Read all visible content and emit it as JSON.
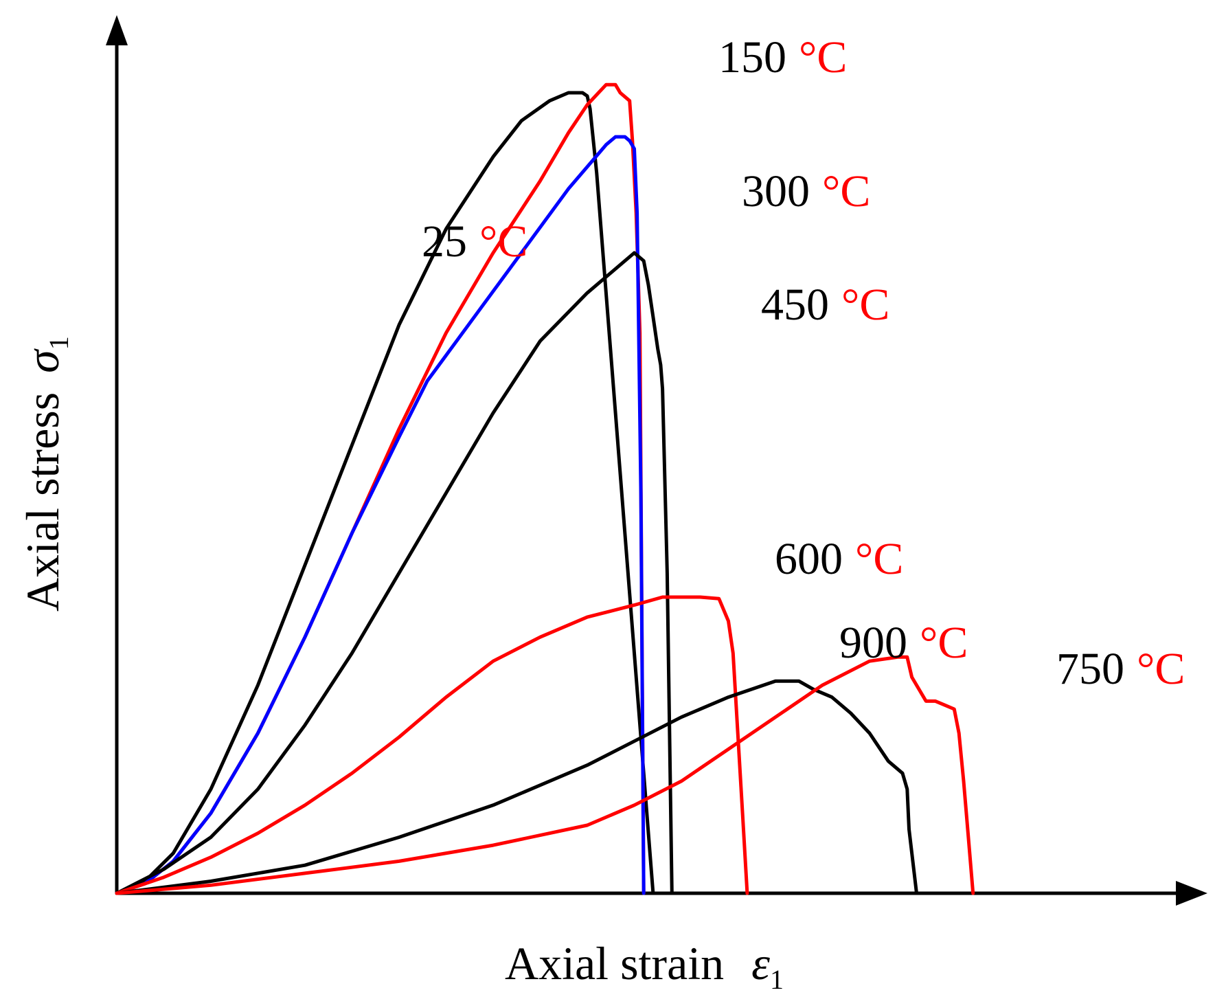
{
  "chart_data": {
    "type": "line",
    "title": "",
    "xlabel": "Axial strain",
    "xlabel_symbol": "ε",
    "xlabel_subscript": "1",
    "ylabel": "Axial stress",
    "ylabel_symbol": "σ",
    "ylabel_subscript": "1",
    "grid": false,
    "legend": "inline labels",
    "xlim": [
      0,
      1.0
    ],
    "ylim": [
      0,
      1.0
    ],
    "unit_symbol": "°C",
    "colors": {
      "black": "#000000",
      "red": "#ff0000",
      "blue": "#0000ff"
    },
    "series": [
      {
        "name": "25",
        "color": "#000000",
        "x": [
          0,
          0.03,
          0.06,
          0.1,
          0.15,
          0.2,
          0.25,
          0.3,
          0.35,
          0.4,
          0.43,
          0.46,
          0.48,
          0.495,
          0.5,
          0.503,
          0.51,
          0.57
        ],
        "y": [
          0,
          0.015,
          0.05,
          0.13,
          0.26,
          0.41,
          0.56,
          0.71,
          0.83,
          0.92,
          0.965,
          0.99,
          1.0,
          1.0,
          0.996,
          0.98,
          0.9,
          0
        ]
      },
      {
        "name": "150",
        "color": "#ff0000",
        "x": [
          0,
          0.03,
          0.06,
          0.1,
          0.15,
          0.2,
          0.25,
          0.3,
          0.35,
          0.4,
          0.45,
          0.48,
          0.5,
          0.52,
          0.53,
          0.535,
          0.54,
          0.545,
          0.548,
          0.552,
          0.556,
          0.56
        ],
        "y": [
          0,
          0.012,
          0.04,
          0.1,
          0.2,
          0.32,
          0.45,
          0.58,
          0.7,
          0.8,
          0.89,
          0.95,
          0.985,
          1.01,
          1.01,
          1.0,
          0.995,
          0.99,
          0.94,
          0.85,
          0.7,
          0
        ]
      },
      {
        "name": "300",
        "color": "#0000ff",
        "x": [
          0,
          0.03,
          0.06,
          0.1,
          0.15,
          0.2,
          0.25,
          0.3,
          0.33,
          0.38,
          0.43,
          0.48,
          0.52,
          0.53,
          0.54,
          0.545,
          0.55,
          0.553,
          0.557,
          0.56
        ],
        "y": [
          0,
          0.012,
          0.04,
          0.1,
          0.2,
          0.32,
          0.45,
          0.57,
          0.64,
          0.72,
          0.8,
          0.88,
          0.935,
          0.945,
          0.945,
          0.94,
          0.93,
          0.85,
          0.5,
          0
        ]
      },
      {
        "name": "450",
        "color": "#000000",
        "x": [
          0,
          0.05,
          0.1,
          0.15,
          0.2,
          0.25,
          0.3,
          0.35,
          0.4,
          0.45,
          0.5,
          0.55,
          0.56,
          0.565,
          0.57,
          0.575,
          0.578,
          0.58,
          0.585,
          0.59
        ],
        "y": [
          0,
          0.03,
          0.07,
          0.13,
          0.21,
          0.3,
          0.4,
          0.5,
          0.6,
          0.69,
          0.75,
          0.8,
          0.79,
          0.76,
          0.72,
          0.68,
          0.66,
          0.63,
          0.4,
          0
        ]
      },
      {
        "name": "600",
        "color": "#ff0000",
        "x": [
          0,
          0.05,
          0.1,
          0.15,
          0.2,
          0.25,
          0.3,
          0.35,
          0.4,
          0.45,
          0.5,
          0.55,
          0.58,
          0.6,
          0.62,
          0.64,
          0.65,
          0.655,
          0.66,
          0.665,
          0.67
        ],
        "y": [
          0,
          0.02,
          0.045,
          0.075,
          0.11,
          0.15,
          0.195,
          0.245,
          0.29,
          0.32,
          0.345,
          0.36,
          0.37,
          0.37,
          0.37,
          0.368,
          0.34,
          0.3,
          0.2,
          0.1,
          0
        ]
      },
      {
        "name": "900",
        "color": "#000000",
        "x": [
          0,
          0.1,
          0.2,
          0.3,
          0.4,
          0.5,
          0.55,
          0.6,
          0.65,
          0.7,
          0.725,
          0.74,
          0.76,
          0.78,
          0.8,
          0.82,
          0.835,
          0.84,
          0.842,
          0.85
        ],
        "y": [
          0,
          0.015,
          0.035,
          0.07,
          0.11,
          0.16,
          0.19,
          0.22,
          0.245,
          0.265,
          0.265,
          0.255,
          0.245,
          0.225,
          0.2,
          0.165,
          0.15,
          0.13,
          0.08,
          0
        ]
      },
      {
        "name": "750",
        "color": "#ff0000",
        "x": [
          0,
          0.1,
          0.2,
          0.3,
          0.4,
          0.5,
          0.55,
          0.6,
          0.65,
          0.7,
          0.75,
          0.8,
          0.83,
          0.84,
          0.845,
          0.86,
          0.87,
          0.88,
          0.89,
          0.895,
          0.9,
          0.905,
          0.91
        ],
        "y": [
          0,
          0.01,
          0.025,
          0.04,
          0.06,
          0.085,
          0.11,
          0.14,
          0.18,
          0.22,
          0.26,
          0.29,
          0.295,
          0.295,
          0.27,
          0.24,
          0.24,
          0.235,
          0.23,
          0.2,
          0.14,
          0.07,
          0
        ]
      }
    ],
    "annotations": [
      {
        "series": "25",
        "temp": "25"
      },
      {
        "series": "150",
        "temp": "150"
      },
      {
        "series": "300",
        "temp": "300"
      },
      {
        "series": "450",
        "temp": "450"
      },
      {
        "series": "600",
        "temp": "600"
      },
      {
        "series": "900",
        "temp": "900"
      },
      {
        "series": "750",
        "temp": "750"
      }
    ]
  }
}
